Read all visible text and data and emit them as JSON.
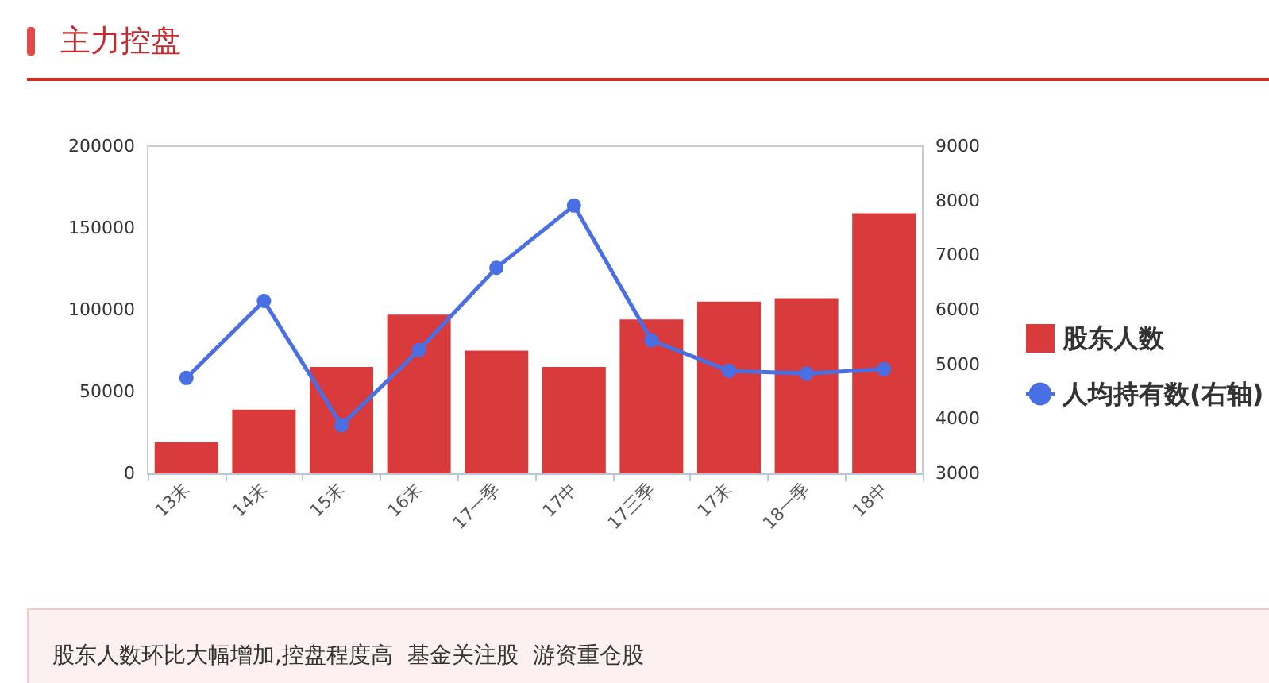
{
  "chart_data": {
    "type": "bar",
    "title": "主力控盘",
    "annotations": [
      "股东人数环比大幅增加,控盘程度高  基金关注股  游资重仓股"
    ],
    "categories": [
      "13末",
      "14末",
      "15末",
      "16末",
      "17一季",
      "17中",
      "17三季",
      "17末",
      "18一季",
      "18中"
    ],
    "series": [
      {
        "name": "股东人数",
        "color": "#d93a3b",
        "values": [
          19000,
          39000,
          65000,
          97000,
          75000,
          65000,
          94000,
          105000,
          107000,
          159000
        ]
      },
      {
        "name": "人均持有数(右轴)",
        "type": "line",
        "axis": "y2",
        "color": "#4a6fe3",
        "marker": "circle",
        "values": [
          4750,
          6160,
          3880,
          5260,
          6770,
          7910,
          5440,
          4880,
          4830,
          4910
        ]
      }
    ],
    "ylim": [
      0,
      200000
    ],
    "yticks": [
      0,
      50000,
      100000,
      150000,
      200000
    ],
    "y2lim": [
      3000,
      9000
    ],
    "y2ticks": [
      3000,
      4000,
      5000,
      6000,
      7000,
      8000,
      9000
    ],
    "grid": false,
    "legend": "right"
  }
}
